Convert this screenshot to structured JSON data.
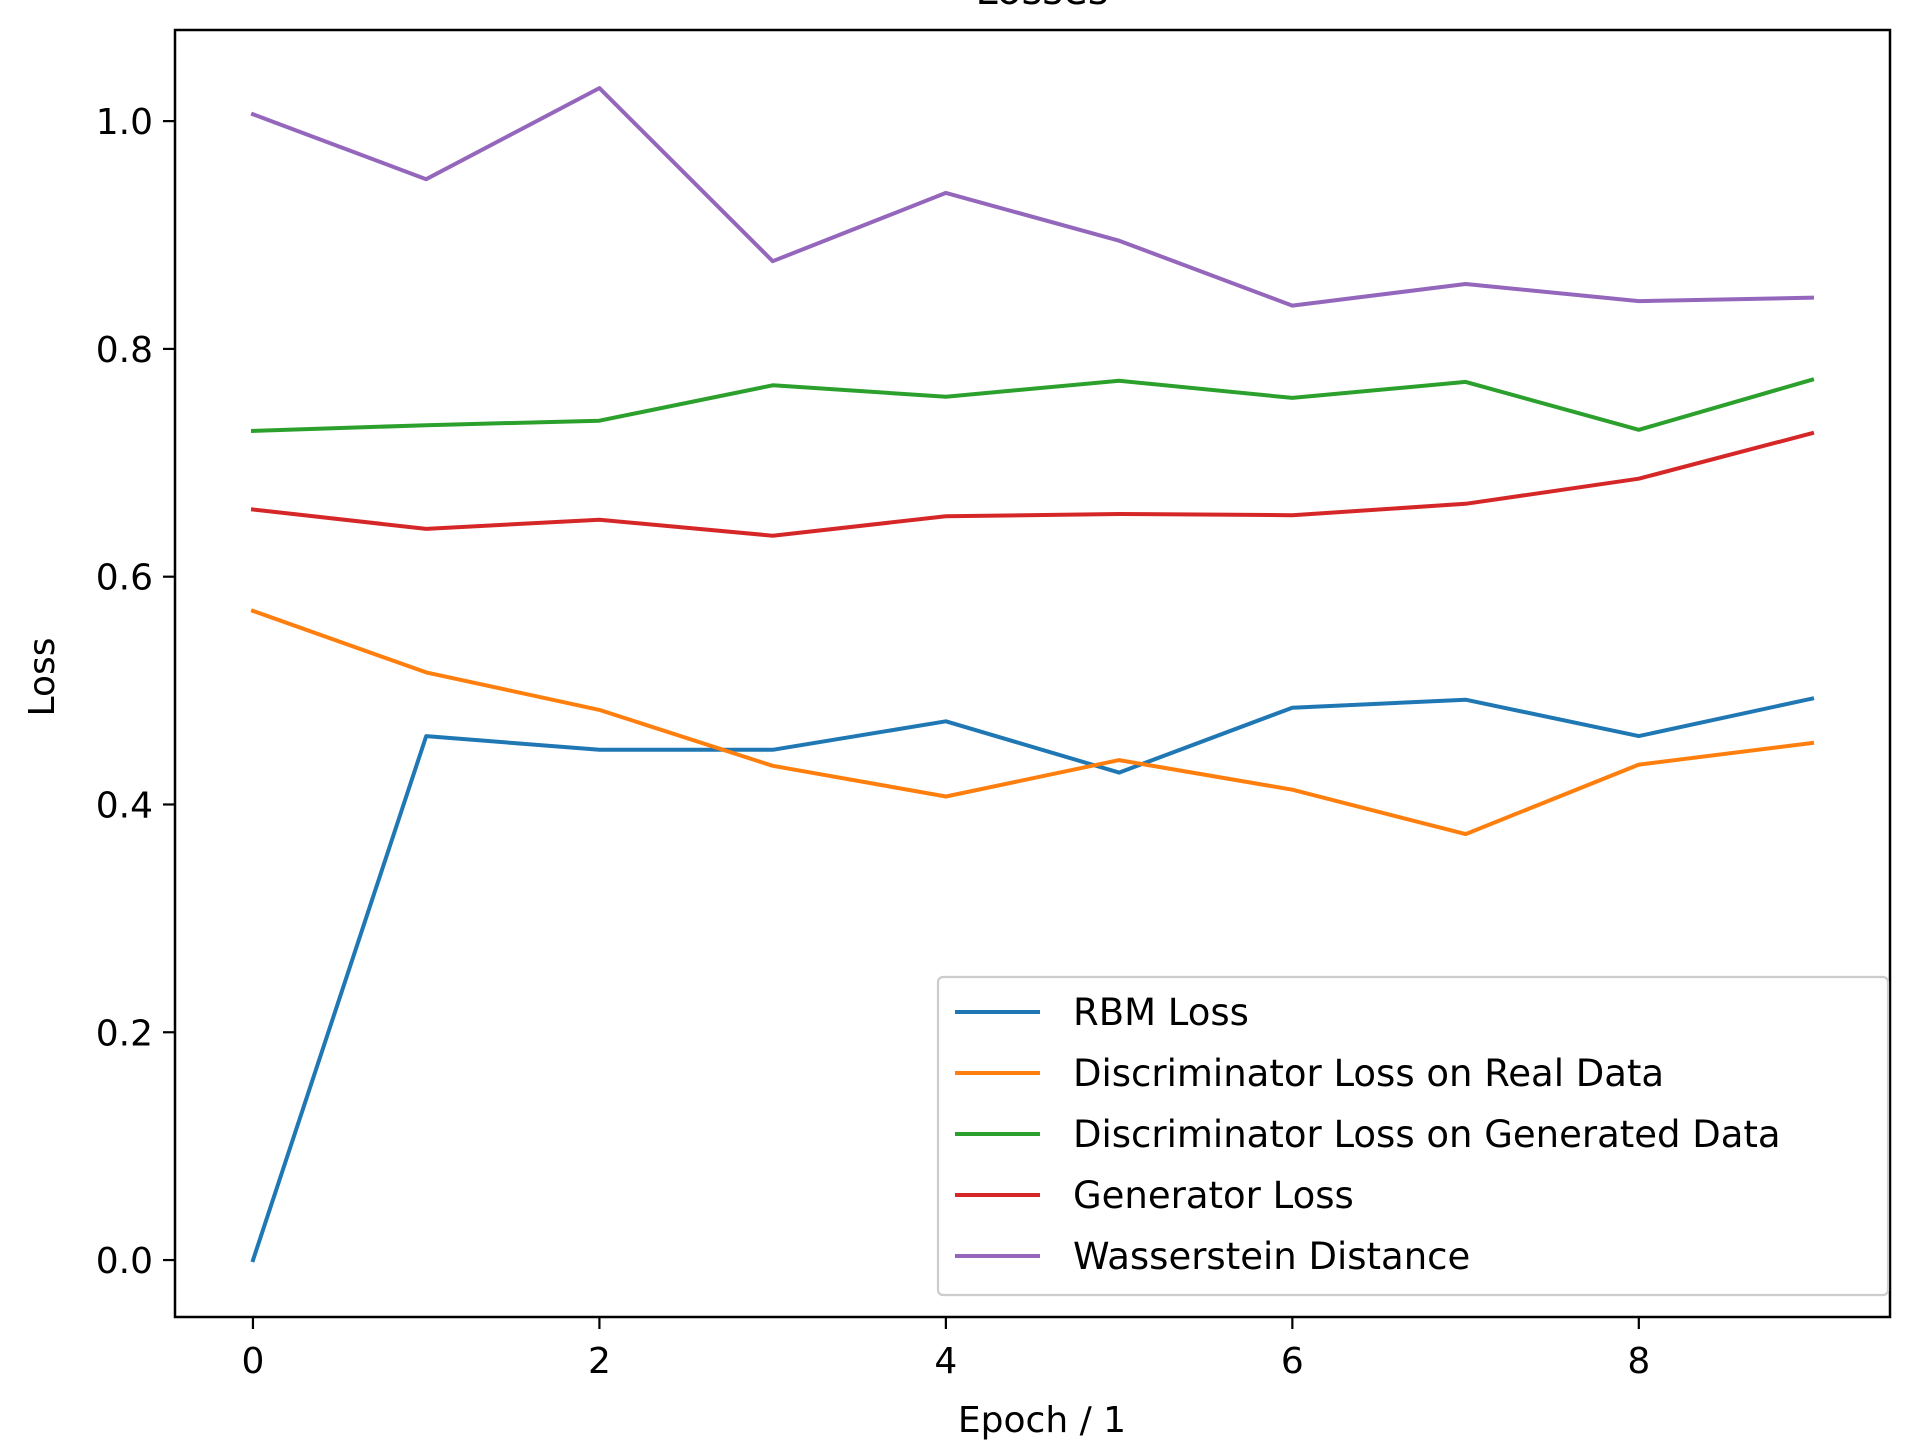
{
  "chart_data": {
    "type": "line",
    "title": "Losses",
    "xlabel": "Epoch / 1",
    "ylabel": "Loss",
    "x": [
      0,
      1,
      2,
      3,
      4,
      5,
      6,
      7,
      8,
      9
    ],
    "xlim": [
      -0.45,
      9.45
    ],
    "ylim": [
      -0.05,
      1.08
    ],
    "xticks": [
      0,
      2,
      4,
      6,
      8
    ],
    "xtick_labels": [
      "0",
      "2",
      "4",
      "6",
      "8"
    ],
    "yticks": [
      0.0,
      0.2,
      0.4,
      0.6,
      0.8,
      1.0
    ],
    "ytick_labels": [
      "0.0",
      "0.2",
      "0.4",
      "0.6",
      "0.8",
      "1.0"
    ],
    "grid": false,
    "legend_position": "lower-right",
    "series": [
      {
        "name": "RBM Loss",
        "color": "#1f77b4",
        "values": [
          0.0,
          0.46,
          0.448,
          0.448,
          0.473,
          0.428,
          0.485,
          0.492,
          0.46,
          0.493
        ]
      },
      {
        "name": "Discriminator Loss on Real Data",
        "color": "#ff7f0e",
        "values": [
          0.57,
          0.516,
          0.483,
          0.434,
          0.407,
          0.439,
          0.413,
          0.374,
          0.435,
          0.454
        ]
      },
      {
        "name": "Discriminator Loss on Generated Data",
        "color": "#2ca02c",
        "values": [
          0.728,
          0.733,
          0.737,
          0.768,
          0.758,
          0.772,
          0.757,
          0.771,
          0.729,
          0.773
        ]
      },
      {
        "name": "Generator Loss",
        "color": "#d62728",
        "values": [
          0.659,
          0.642,
          0.65,
          0.636,
          0.653,
          0.655,
          0.654,
          0.664,
          0.686,
          0.726
        ]
      },
      {
        "name": "Wasserstein Distance",
        "color": "#9467bd",
        "values": [
          1.006,
          0.949,
          1.029,
          0.877,
          0.937,
          0.895,
          0.838,
          0.857,
          0.842,
          0.845
        ]
      }
    ]
  }
}
